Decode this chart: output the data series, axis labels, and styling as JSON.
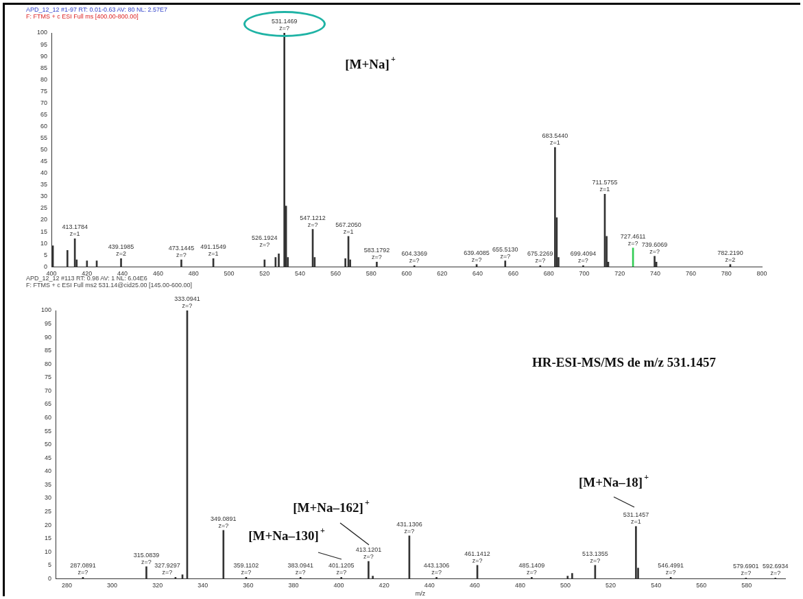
{
  "chart_data": [
    {
      "type": "bar",
      "title": "APD_12_12 #1-97  RT: 0.01-0.63  AV: 80  NL: 2.57E7",
      "subtitle": "F: FTMS + c ESI Full ms [400.00-800.00]",
      "x": [
        400.8,
        409,
        413.1784,
        414.2,
        420,
        425.5,
        439.1985,
        473.1445,
        491.1549,
        520,
        526.1924,
        528,
        531.1469,
        532.1,
        533.1,
        547.1212,
        548.2,
        565.5,
        567.205,
        568.2,
        583.1792,
        604.3369,
        639.4085,
        655.513,
        675.2269,
        683.544,
        684.5,
        685.5,
        699.4094,
        711.5755,
        712.6,
        713.5,
        727.4611,
        739.6069,
        740.6,
        782.219
      ],
      "values": [
        9,
        7,
        12,
        3,
        2.5,
        2.5,
        3.5,
        3,
        3.5,
        3,
        4,
        5.5,
        100,
        26,
        4,
        16,
        4,
        3.5,
        13,
        3,
        2,
        0.5,
        1,
        2.5,
        0.5,
        51,
        21,
        4,
        0.5,
        31,
        13,
        2,
        8,
        4.5,
        2,
        1
      ],
      "colors": [
        "#333333",
        "#333333",
        "#333333",
        "#333333",
        "#333333",
        "#333333",
        "#333333",
        "#333333",
        "#333333",
        "#333333",
        "#333333",
        "#333333",
        "#333333",
        "#333333",
        "#333333",
        "#333333",
        "#333333",
        "#333333",
        "#333333",
        "#333333",
        "#333333",
        "#333333",
        "#333333",
        "#333333",
        "#333333",
        "#333333",
        "#333333",
        "#333333",
        "#333333",
        "#333333",
        "#333333",
        "#333333",
        "#33cc55",
        "#333333",
        "#333333",
        "#333333"
      ],
      "xlim": [
        400,
        800
      ],
      "xticks": [
        400,
        420,
        440,
        460,
        480,
        500,
        520,
        540,
        560,
        580,
        600,
        620,
        640,
        660,
        680,
        700,
        720,
        740,
        760,
        780,
        800
      ],
      "ylim": [
        0,
        100
      ],
      "yticks": [
        0,
        5,
        10,
        15,
        20,
        25,
        30,
        35,
        40,
        45,
        50,
        55,
        60,
        65,
        70,
        75,
        80,
        85,
        90,
        95,
        100
      ],
      "annotations": [
        "[M+Na]$^{+}$",
        {
          "text": "413.1784\nz=1",
          "x": 413.1784,
          "y": 12
        },
        {
          "text": "439.1985\nz=2",
          "x": 439.1985,
          "y": 3.5
        },
        {
          "text": "473.1445\nz=?",
          "x": 473.1445,
          "y": 3
        },
        {
          "text": "491.1549\nz=1",
          "x": 491.1549,
          "y": 3.5
        },
        {
          "text": "526.1924\nz=?",
          "x": 526.1924,
          "y": 4
        },
        {
          "text": "531.1469\nz=?",
          "x": 531.1469,
          "y": 100
        },
        {
          "text": "547.1212\nz=?",
          "x": 547.1212,
          "y": 16
        },
        {
          "text": "567.2050\nz=1",
          "x": 567.205,
          "y": 13
        },
        {
          "text": "583.1792\nz=?",
          "x": 583.1792,
          "y": 2
        },
        {
          "text": "604.3369\nz=?",
          "x": 604.3369,
          "y": 0.5
        },
        {
          "text": "639.4085\nz=?",
          "x": 639.4085,
          "y": 1
        },
        {
          "text": "655.5130\nz=?",
          "x": 655.513,
          "y": 2.5
        },
        {
          "text": "675.2269\nz=?",
          "x": 675.2269,
          "y": 0.5
        },
        {
          "text": "683.5440\nz=1",
          "x": 683.544,
          "y": 51
        },
        {
          "text": "699.4094\nz=?",
          "x": 699.4094,
          "y": 0.5
        },
        {
          "text": "711.5755\nz=1",
          "x": 711.5755,
          "y": 31
        },
        {
          "text": "727.4611\nz=?",
          "x": 727.4611,
          "y": 8
        },
        {
          "text": "739.6069\nz=?",
          "x": 739.6069,
          "y": 4.5
        },
        {
          "text": "782.2190\nz=2",
          "x": 782.219,
          "y": 1
        }
      ]
    },
    {
      "type": "bar",
      "title": "APD_12_12 #113  RT: 0.98  AV: 1  NL: 6.04E6",
      "subtitle": "F: FTMS + c ESI Full ms2 531.14@cid25.00 [145.00-600.00]",
      "xlabel": "m/z",
      "x": [
        287.0891,
        315.0839,
        327.9297,
        331,
        333.0941,
        349.0891,
        359.1102,
        383.0941,
        401.1205,
        413.1201,
        415,
        431.1306,
        443.1306,
        461.1412,
        485.1409,
        501,
        503,
        513.1355,
        531.1457,
        532.1,
        546.4991,
        579.6901,
        592.6934
      ],
      "values": [
        0.5,
        4.5,
        0.5,
        1.5,
        100,
        18,
        0.5,
        0.5,
        0.5,
        6.5,
        1,
        16,
        0.5,
        5,
        0.5,
        1,
        2,
        5,
        19.5,
        4,
        0.5,
        0.3,
        0.3
      ],
      "colors": [
        "#333333",
        "#333333",
        "#333333",
        "#333333",
        "#333333",
        "#333333",
        "#333333",
        "#333333",
        "#333333",
        "#333333",
        "#333333",
        "#333333",
        "#333333",
        "#333333",
        "#333333",
        "#333333",
        "#333333",
        "#333333",
        "#333333",
        "#333333",
        "#333333",
        "#333333",
        "#333333"
      ],
      "xlim": [
        275,
        597
      ],
      "xticks": [
        280,
        300,
        320,
        340,
        360,
        380,
        400,
        420,
        440,
        460,
        480,
        500,
        520,
        540,
        560,
        580
      ],
      "ylim": [
        0,
        100
      ],
      "yticks": [
        0,
        5,
        10,
        15,
        20,
        25,
        30,
        35,
        40,
        45,
        50,
        55,
        60,
        65,
        70,
        75,
        80,
        85,
        90,
        95,
        100
      ],
      "annotations": [
        "HR-ESI-MS/MS de m/z 531.1457",
        "[M+Na–162]$^{+}$",
        "[M+Na–130]$^{+}$",
        "[M+Na–18]$^{+}$",
        {
          "text": "287.0891\nz=?",
          "x": 287.0891,
          "y": 0.5
        },
        {
          "text": "315.0839\nz=?",
          "x": 315.0839,
          "y": 4.5
        },
        {
          "text": "327.9297\nz=?",
          "x": 327.9297,
          "y": 0.5
        },
        {
          "text": "333.0941\nz=?",
          "x": 333.0941,
          "y": 100
        },
        {
          "text": "349.0891\nz=?",
          "x": 349.0891,
          "y": 18
        },
        {
          "text": "359.1102\nz=?",
          "x": 359.1102,
          "y": 0.5
        },
        {
          "text": "383.0941\nz=?",
          "x": 383.0941,
          "y": 0.5
        },
        {
          "text": "401.1205\nz=?",
          "x": 401.1205,
          "y": 0.5
        },
        {
          "text": "413.1201\nz=?",
          "x": 413.1201,
          "y": 6.5
        },
        {
          "text": "431.1306\nz=?",
          "x": 431.1306,
          "y": 16
        },
        {
          "text": "443.1306\nz=?",
          "x": 443.1306,
          "y": 0.5
        },
        {
          "text": "461.1412\nz=?",
          "x": 461.1412,
          "y": 5
        },
        {
          "text": "485.1409\nz=?",
          "x": 485.1409,
          "y": 0.5
        },
        {
          "text": "513.1355\nz=?",
          "x": 513.1355,
          "y": 5
        },
        {
          "text": "531.1457\nz=1",
          "x": 531.1457,
          "y": 19.5
        },
        {
          "text": "546.4991\nz=?",
          "x": 546.4991,
          "y": 0.5
        },
        {
          "text": "579.6901\nz=?",
          "x": 579.6901,
          "y": 0.3
        },
        {
          "text": "592.6934\nz=?",
          "x": 592.6934,
          "y": 0.3
        }
      ]
    }
  ]
}
